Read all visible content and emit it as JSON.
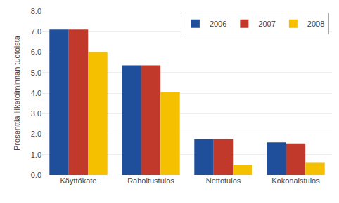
{
  "chart_data": {
    "type": "bar",
    "categories": [
      "Käyttökate",
      "Rahoitustulos",
      "Nettotulos",
      "Kokonaistulos"
    ],
    "series": [
      {
        "name": "2006",
        "color": "#1F4E9B",
        "values": [
          7.1,
          5.35,
          1.75,
          1.6
        ]
      },
      {
        "name": "2007",
        "color": "#C0392B",
        "values": [
          7.1,
          5.35,
          1.75,
          1.55
        ]
      },
      {
        "name": "2008",
        "color": "#F4C000",
        "values": [
          6.0,
          4.05,
          0.5,
          0.6
        ]
      }
    ],
    "ylabel": "Prosenttia liiketoiminnan tuotoista",
    "ylim": [
      0,
      8.0
    ],
    "yticks": [
      {
        "value": 0.0,
        "label": "0.0"
      },
      {
        "value": 1.0,
        "label": "1.0"
      },
      {
        "value": 2.0,
        "label": "2.0"
      },
      {
        "value": 3.0,
        "label": "3.0"
      },
      {
        "value": 4.0,
        "label": "4.0"
      },
      {
        "value": 5.0,
        "label": "5.0"
      },
      {
        "value": 6.0,
        "label": "6.0"
      },
      {
        "value": 7.0,
        "label": "7.0"
      },
      {
        "value": 8.0,
        "label": "8.0"
      }
    ],
    "grid": true,
    "legend": "upper right"
  }
}
